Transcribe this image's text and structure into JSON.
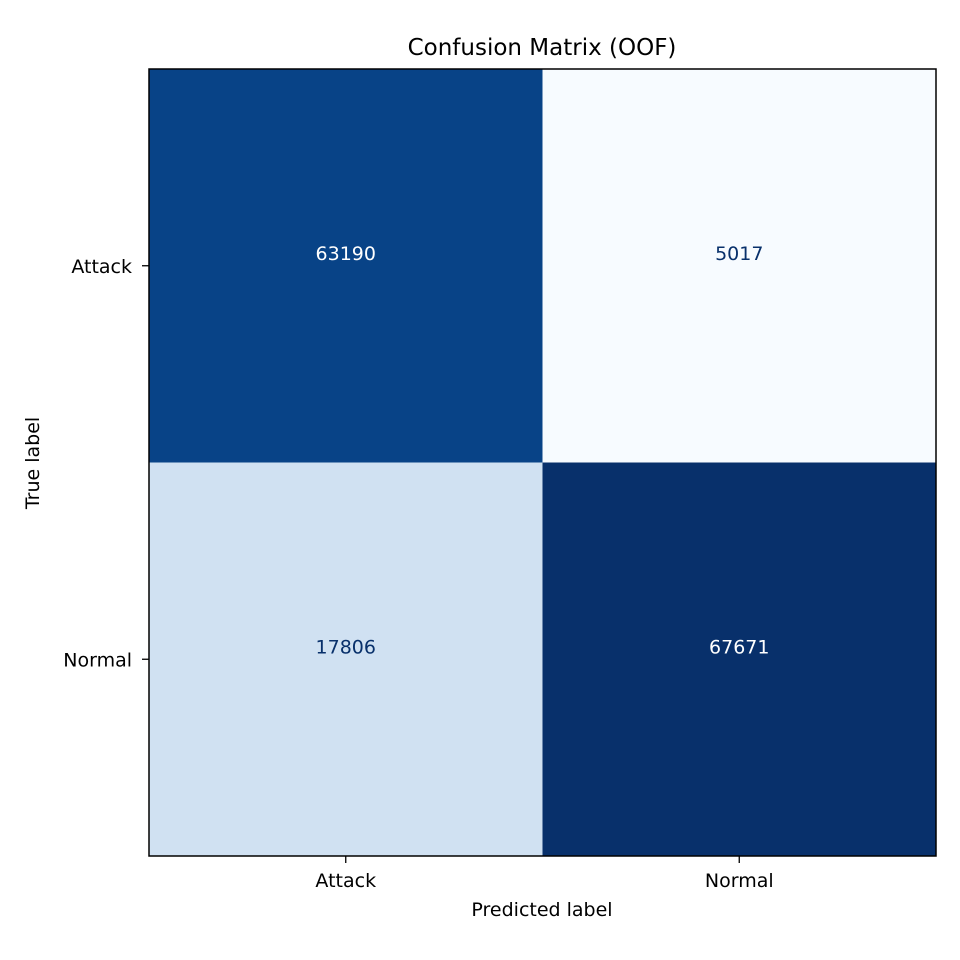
{
  "chart_data": {
    "type": "heatmap",
    "title": "Confusion Matrix (OOF)",
    "xlabel": "Predicted label",
    "ylabel": "True label",
    "x_categories": [
      "Attack",
      "Normal"
    ],
    "y_categories": [
      "Attack",
      "Normal"
    ],
    "values": [
      [
        63190,
        5017
      ],
      [
        17806,
        67671
      ]
    ],
    "colormap": "Blues",
    "cell_colors": [
      [
        "#084387",
        "#f7fbff"
      ],
      [
        "#d0e1f2",
        "#08306b"
      ]
    ],
    "text_colors": [
      [
        "#ffffff",
        "#08306b"
      ],
      [
        "#08306b",
        "#ffffff"
      ]
    ],
    "colorbar": false,
    "grid": false
  }
}
